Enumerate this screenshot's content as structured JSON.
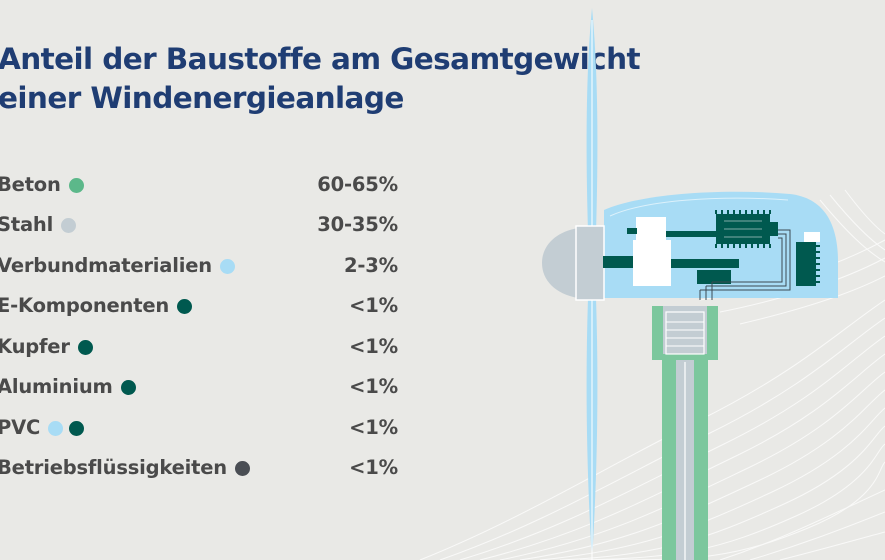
{
  "title": {
    "line1": "Anteil der Baustoffe am Gesamtgewicht",
    "line2": "einer Windenergieanlage"
  },
  "colors": {
    "beton": "#5cb88a",
    "stahl": "#c3cdd3",
    "verbund": "#a8dcf5",
    "dark_teal": "#00594f",
    "betriebs": "#4a4e54",
    "title": "#1f3d73",
    "text": "#4a4a4a"
  },
  "materials": [
    {
      "label": "Beton",
      "value": "60-65%",
      "dots": [
        "#5cb88a"
      ]
    },
    {
      "label": "Stahl",
      "value": "30-35%",
      "dots": [
        "#c3cdd3"
      ]
    },
    {
      "label": "Verbundmaterialien",
      "value": "2-3%",
      "dots": [
        "#a8dcf5"
      ]
    },
    {
      "label": "E-Komponenten",
      "value": "<1%",
      "dots": [
        "#00594f"
      ]
    },
    {
      "label": "Kupfer",
      "value": "<1%",
      "dots": [
        "#00594f"
      ]
    },
    {
      "label": "Aluminium",
      "value": "<1%",
      "dots": [
        "#00594f"
      ]
    },
    {
      "label": "PVC",
      "value": "<1%",
      "dots": [
        "#a8dcf5",
        "#00594f"
      ]
    },
    {
      "label": "Betriebsflüssigkeiten",
      "value": "<1%",
      "dots": [
        "#4a4e54"
      ]
    }
  ]
}
